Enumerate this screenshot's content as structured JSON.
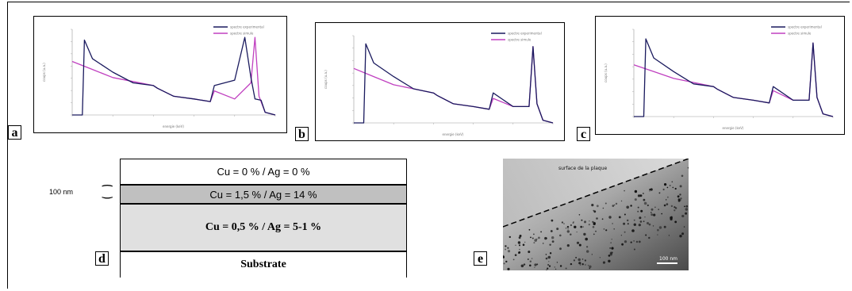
{
  "panels": {
    "a": {
      "tag": "a",
      "legend": [
        "spectre experimental",
        "spectre simule"
      ],
      "xlabel": "energie (keV)",
      "ylabel": "coups (u.a.)"
    },
    "b": {
      "tag": "b",
      "legend": [
        "spectre experimental",
        "spectre simule"
      ],
      "xlabel": "energie (keV)",
      "ylabel": "coups (u.a.)"
    },
    "c": {
      "tag": "c",
      "legend": [
        "spectre experimental",
        "spectre simule"
      ],
      "xlabel": "energie (keV)",
      "ylabel": "coups (u.a.)"
    }
  },
  "schematic": {
    "tag": "d",
    "thickness_label": "100 nm",
    "layers": [
      {
        "text": "Cu = 0 % / Ag = 0  %"
      },
      {
        "text": "Cu = 1,5 % / Ag = 14 %"
      },
      {
        "text": "Cu = 0,5 % / Ag = 5-1 %"
      },
      {
        "text": "Substrate"
      }
    ]
  },
  "tem_image": {
    "tag": "e",
    "surface_label": "surface de la plaque",
    "scale_bar": "100 nm"
  },
  "colors": {
    "experimental": "#1a1a5e",
    "simulated": "#c040c0"
  },
  "chart_data": [
    {
      "type": "line",
      "panel": "a",
      "series": [
        {
          "name": "spectre experimental",
          "x": [
            0.0,
            0.05,
            0.06,
            0.1,
            0.2,
            0.3,
            0.4,
            0.42,
            0.5,
            0.6,
            0.68,
            0.7,
            0.8,
            0.85,
            0.88,
            0.9,
            0.93,
            0.95,
            1.0
          ],
          "y": [
            0,
            0,
            280,
            210,
            160,
            120,
            110,
            100,
            70,
            60,
            50,
            110,
            130,
            290,
            140,
            60,
            55,
            10,
            0
          ]
        },
        {
          "name": "spectre simule",
          "x": [
            0.0,
            0.1,
            0.2,
            0.3,
            0.4,
            0.42,
            0.5,
            0.6,
            0.68,
            0.7,
            0.8,
            0.88,
            0.9,
            0.92,
            0.95,
            1.0
          ],
          "y": [
            200,
            170,
            140,
            125,
            110,
            100,
            70,
            60,
            50,
            90,
            60,
            120,
            290,
            70,
            10,
            0
          ]
        }
      ]
    },
    {
      "type": "line",
      "panel": "b",
      "series": [
        {
          "name": "spectre experimental",
          "x": [
            0.0,
            0.05,
            0.06,
            0.1,
            0.2,
            0.3,
            0.4,
            0.42,
            0.5,
            0.6,
            0.68,
            0.7,
            0.8,
            0.88,
            0.9,
            0.92,
            0.95,
            1.0
          ],
          "y": [
            0,
            0,
            290,
            220,
            170,
            125,
            110,
            100,
            70,
            60,
            50,
            110,
            60,
            60,
            280,
            70,
            10,
            0
          ]
        },
        {
          "name": "spectre simule",
          "x": [
            0.0,
            0.1,
            0.2,
            0.3,
            0.4,
            0.42,
            0.5,
            0.6,
            0.68,
            0.7,
            0.8,
            0.88,
            0.9,
            0.92,
            0.95,
            1.0
          ],
          "y": [
            200,
            170,
            140,
            125,
            110,
            100,
            70,
            60,
            50,
            90,
            60,
            60,
            280,
            70,
            10,
            0
          ]
        }
      ]
    },
    {
      "type": "line",
      "panel": "c",
      "series": [
        {
          "name": "spectre experimental",
          "x": [
            0.0,
            0.05,
            0.06,
            0.1,
            0.2,
            0.3,
            0.4,
            0.42,
            0.5,
            0.6,
            0.68,
            0.7,
            0.8,
            0.88,
            0.9,
            0.92,
            0.95,
            1.0
          ],
          "y": [
            0,
            0,
            285,
            215,
            165,
            120,
            110,
            100,
            70,
            60,
            50,
            110,
            60,
            60,
            270,
            70,
            10,
            0
          ]
        },
        {
          "name": "spectre simule",
          "x": [
            0.0,
            0.1,
            0.2,
            0.3,
            0.4,
            0.42,
            0.5,
            0.6,
            0.68,
            0.7,
            0.8,
            0.88,
            0.9,
            0.92,
            0.95,
            1.0
          ],
          "y": [
            190,
            165,
            140,
            125,
            110,
            100,
            70,
            60,
            50,
            95,
            60,
            60,
            270,
            70,
            10,
            0
          ]
        }
      ]
    }
  ]
}
